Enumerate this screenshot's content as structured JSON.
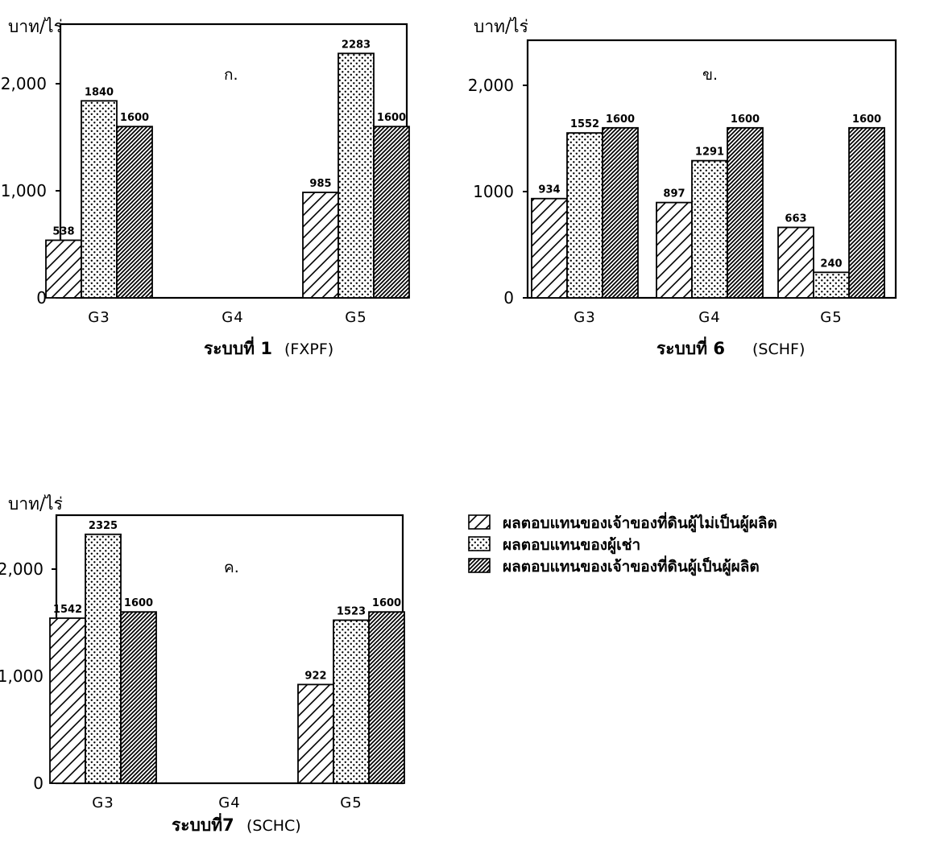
{
  "legend": [
    {
      "label": "ผลตอบแทนของเจ้าของที่ดินผู้ไม่เป็นผู้ผลิต",
      "pattern": "hatch-light"
    },
    {
      "label": "ผลตอบแทนของผู้เช่า",
      "pattern": "dots"
    },
    {
      "label": "ผลตอบแทนของเจ้าของที่ดินผู้เป็นผู้ผลิต",
      "pattern": "hatch-dense"
    }
  ],
  "chart_data": [
    {
      "type": "bar",
      "panel_label": "ก.",
      "ylabel": "บาท/ไร่",
      "yticks": [
        "0",
        "1,000",
        "2,000"
      ],
      "ylim": [
        0,
        2500
      ],
      "categories": [
        "G3",
        "G4",
        "G5"
      ],
      "caption_system": "ระบบที่ 1",
      "caption_code": "(FXPF)",
      "series": [
        {
          "name": "ผลตอบแทนของเจ้าของที่ดินผู้ไม่เป็นผู้ผลิต",
          "values": [
            538,
            null,
            985
          ],
          "labels": [
            "538",
            "",
            "985"
          ]
        },
        {
          "name": "ผลตอบแทนของผู้เช่า",
          "values": [
            1840,
            null,
            2283
          ],
          "labels": [
            "1840",
            "",
            "2283"
          ]
        },
        {
          "name": "ผลตอบแทนของเจ้าของที่ดินผู้เป็นผู้ผลิต",
          "values": [
            1600,
            null,
            1600
          ],
          "labels": [
            "1600",
            "",
            "1600"
          ]
        }
      ]
    },
    {
      "type": "bar",
      "panel_label": "ข.",
      "ylabel": "บาท/ไร่",
      "yticks": [
        "0",
        "1000",
        "2,000"
      ],
      "ylim": [
        0,
        2500
      ],
      "categories": [
        "G3",
        "G4",
        "G5"
      ],
      "caption_system": "ระบบที่ 6",
      "caption_code": "(SCHF)",
      "series": [
        {
          "name": "ผลตอบแทนของเจ้าของที่ดินผู้ไม่เป็นผู้ผลิต",
          "values": [
            934,
            897,
            663
          ],
          "labels": [
            "934",
            "897",
            "663"
          ]
        },
        {
          "name": "ผลตอบแทนของผู้เช่า",
          "values": [
            1552,
            1291,
            240
          ],
          "labels": [
            "1552",
            "1291",
            "240"
          ]
        },
        {
          "name": "ผลตอบแทนของเจ้าของที่ดินผู้เป็นผู้ผลิต",
          "values": [
            1600,
            1600,
            1600
          ],
          "labels": [
            "1600",
            "1600",
            "1600"
          ]
        }
      ]
    },
    {
      "type": "bar",
      "panel_label": "ค.",
      "ylabel": "บาท/ไร่",
      "yticks": [
        "0",
        "1,000",
        "2,000"
      ],
      "ylim": [
        0,
        2500
      ],
      "categories": [
        "G3",
        "G4",
        "G5"
      ],
      "caption_system": "ระบบที่7",
      "caption_code": "(SCHC)",
      "series": [
        {
          "name": "ผลตอบแทนของเจ้าของที่ดินผู้ไม่เป็นผู้ผลิต",
          "values": [
            1542,
            null,
            922
          ],
          "labels": [
            "1542",
            "",
            "922"
          ]
        },
        {
          "name": "ผลตอบแทนของผู้เช่า",
          "values": [
            2325,
            null,
            1523
          ],
          "labels": [
            "2325",
            "",
            "1523"
          ]
        },
        {
          "name": "ผลตอบแทนของเจ้าของที่ดินผู้เป็นผู้ผลิต",
          "values": [
            1600,
            null,
            1600
          ],
          "labels": [
            "1600",
            "",
            "1600"
          ]
        }
      ]
    }
  ]
}
